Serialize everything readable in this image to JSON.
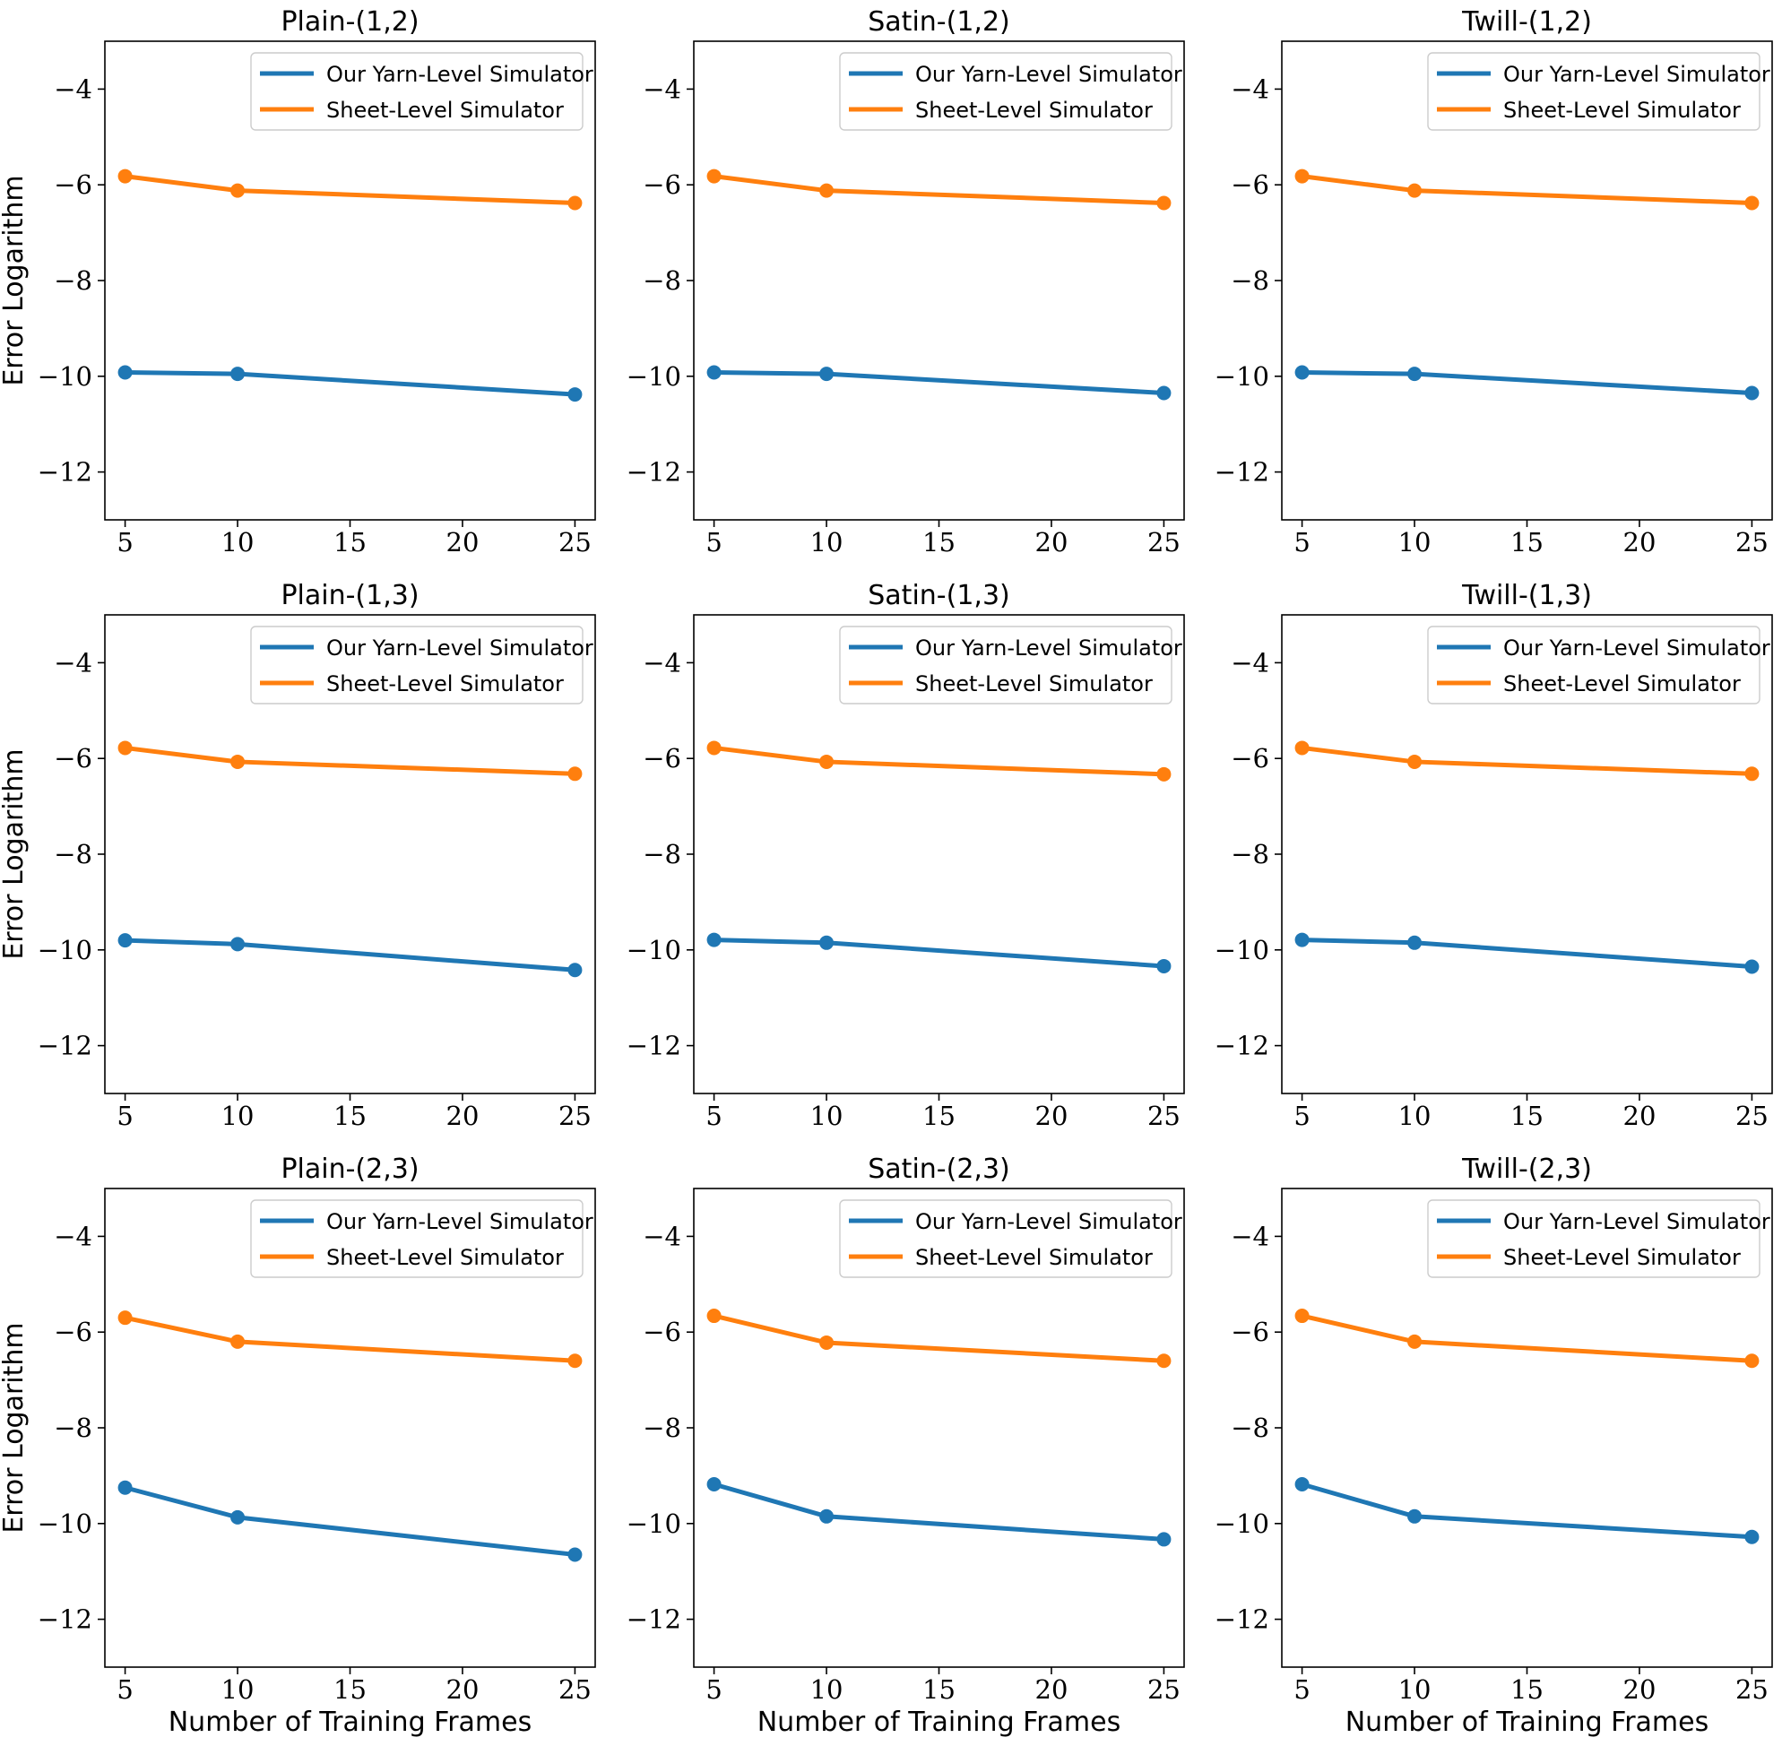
{
  "colors": {
    "yarn": "#1f77b4",
    "sheet": "#ff7f0e"
  },
  "chart_data": [
    {
      "type": "line",
      "title": "Plain-(1,2)",
      "xlabel": "",
      "ylabel": "Error Logarithm",
      "x": [
        5,
        10,
        25
      ],
      "xticks": [
        5,
        10,
        15,
        20,
        25
      ],
      "yticks": [
        -4,
        -6,
        -8,
        -10,
        -12
      ],
      "xlim": [
        4.1,
        25.9
      ],
      "ylim": [
        -13,
        -3
      ],
      "legend": "top-right",
      "series": [
        {
          "name": "Our Yarn-Level Simulator",
          "values": [
            -9.92,
            -9.95,
            -10.38
          ]
        },
        {
          "name": "Sheet-Level Simulator",
          "values": [
            -5.82,
            -6.12,
            -6.38
          ]
        }
      ]
    },
    {
      "type": "line",
      "title": "Satin-(1,2)",
      "xlabel": "",
      "ylabel": "",
      "x": [
        5,
        10,
        25
      ],
      "xticks": [
        5,
        10,
        15,
        20,
        25
      ],
      "yticks": [
        -4,
        -6,
        -8,
        -10,
        -12
      ],
      "xlim": [
        4.1,
        25.9
      ],
      "ylim": [
        -13,
        -3
      ],
      "legend": "top-right",
      "series": [
        {
          "name": "Our Yarn-Level Simulator",
          "values": [
            -9.92,
            -9.95,
            -10.35
          ]
        },
        {
          "name": "Sheet-Level Simulator",
          "values": [
            -5.82,
            -6.12,
            -6.38
          ]
        }
      ]
    },
    {
      "type": "line",
      "title": "Twill-(1,2)",
      "xlabel": "",
      "ylabel": "",
      "x": [
        5,
        10,
        25
      ],
      "xticks": [
        5,
        10,
        15,
        20,
        25
      ],
      "yticks": [
        -4,
        -6,
        -8,
        -10,
        -12
      ],
      "xlim": [
        4.1,
        25.9
      ],
      "ylim": [
        -13,
        -3
      ],
      "legend": "top-right",
      "series": [
        {
          "name": "Our Yarn-Level Simulator",
          "values": [
            -9.92,
            -9.95,
            -10.35
          ]
        },
        {
          "name": "Sheet-Level Simulator",
          "values": [
            -5.82,
            -6.12,
            -6.38
          ]
        }
      ]
    },
    {
      "type": "line",
      "title": "Plain-(1,3)",
      "xlabel": "",
      "ylabel": "Error Logarithm",
      "x": [
        5,
        10,
        25
      ],
      "xticks": [
        5,
        10,
        15,
        20,
        25
      ],
      "yticks": [
        -4,
        -6,
        -8,
        -10,
        -12
      ],
      "xlim": [
        4.1,
        25.9
      ],
      "ylim": [
        -13,
        -3
      ],
      "legend": "top-right",
      "series": [
        {
          "name": "Our Yarn-Level Simulator",
          "values": [
            -9.8,
            -9.88,
            -10.42
          ]
        },
        {
          "name": "Sheet-Level Simulator",
          "values": [
            -5.78,
            -6.07,
            -6.32
          ]
        }
      ]
    },
    {
      "type": "line",
      "title": "Satin-(1,3)",
      "xlabel": "",
      "ylabel": "",
      "x": [
        5,
        10,
        25
      ],
      "xticks": [
        5,
        10,
        15,
        20,
        25
      ],
      "yticks": [
        -4,
        -6,
        -8,
        -10,
        -12
      ],
      "xlim": [
        4.1,
        25.9
      ],
      "ylim": [
        -13,
        -3
      ],
      "legend": "top-right",
      "series": [
        {
          "name": "Our Yarn-Level Simulator",
          "values": [
            -9.79,
            -9.85,
            -10.34
          ]
        },
        {
          "name": "Sheet-Level Simulator",
          "values": [
            -5.78,
            -6.07,
            -6.33
          ]
        }
      ]
    },
    {
      "type": "line",
      "title": "Twill-(1,3)",
      "xlabel": "",
      "ylabel": "",
      "x": [
        5,
        10,
        25
      ],
      "xticks": [
        5,
        10,
        15,
        20,
        25
      ],
      "yticks": [
        -4,
        -6,
        -8,
        -10,
        -12
      ],
      "xlim": [
        4.1,
        25.9
      ],
      "ylim": [
        -13,
        -3
      ],
      "legend": "top-right",
      "series": [
        {
          "name": "Our Yarn-Level Simulator",
          "values": [
            -9.79,
            -9.85,
            -10.35
          ]
        },
        {
          "name": "Sheet-Level Simulator",
          "values": [
            -5.78,
            -6.07,
            -6.32
          ]
        }
      ]
    },
    {
      "type": "line",
      "title": "Plain-(2,3)",
      "xlabel": "Number of Training Frames",
      "ylabel": "Error Logarithm",
      "x": [
        5,
        10,
        25
      ],
      "xticks": [
        5,
        10,
        15,
        20,
        25
      ],
      "yticks": [
        -4,
        -6,
        -8,
        -10,
        -12
      ],
      "xlim": [
        4.1,
        25.9
      ],
      "ylim": [
        -13,
        -3
      ],
      "legend": "top-right",
      "series": [
        {
          "name": "Our Yarn-Level Simulator",
          "values": [
            -9.25,
            -9.87,
            -10.65
          ]
        },
        {
          "name": "Sheet-Level Simulator",
          "values": [
            -5.7,
            -6.2,
            -6.6
          ]
        }
      ]
    },
    {
      "type": "line",
      "title": "Satin-(2,3)",
      "xlabel": "Number of Training Frames",
      "ylabel": "",
      "x": [
        5,
        10,
        25
      ],
      "xticks": [
        5,
        10,
        15,
        20,
        25
      ],
      "yticks": [
        -4,
        -6,
        -8,
        -10,
        -12
      ],
      "xlim": [
        4.1,
        25.9
      ],
      "ylim": [
        -13,
        -3
      ],
      "legend": "top-right",
      "series": [
        {
          "name": "Our Yarn-Level Simulator",
          "values": [
            -9.18,
            -9.85,
            -10.33
          ]
        },
        {
          "name": "Sheet-Level Simulator",
          "values": [
            -5.66,
            -6.22,
            -6.6
          ]
        }
      ]
    },
    {
      "type": "line",
      "title": "Twill-(2,3)",
      "xlabel": "Number of Training Frames",
      "ylabel": "",
      "x": [
        5,
        10,
        25
      ],
      "xticks": [
        5,
        10,
        15,
        20,
        25
      ],
      "yticks": [
        -4,
        -6,
        -8,
        -10,
        -12
      ],
      "xlim": [
        4.1,
        25.9
      ],
      "ylim": [
        -13,
        -3
      ],
      "legend": "top-right",
      "series": [
        {
          "name": "Our Yarn-Level Simulator",
          "values": [
            -9.18,
            -9.85,
            -10.28
          ]
        },
        {
          "name": "Sheet-Level Simulator",
          "values": [
            -5.66,
            -6.2,
            -6.6
          ]
        }
      ]
    }
  ]
}
